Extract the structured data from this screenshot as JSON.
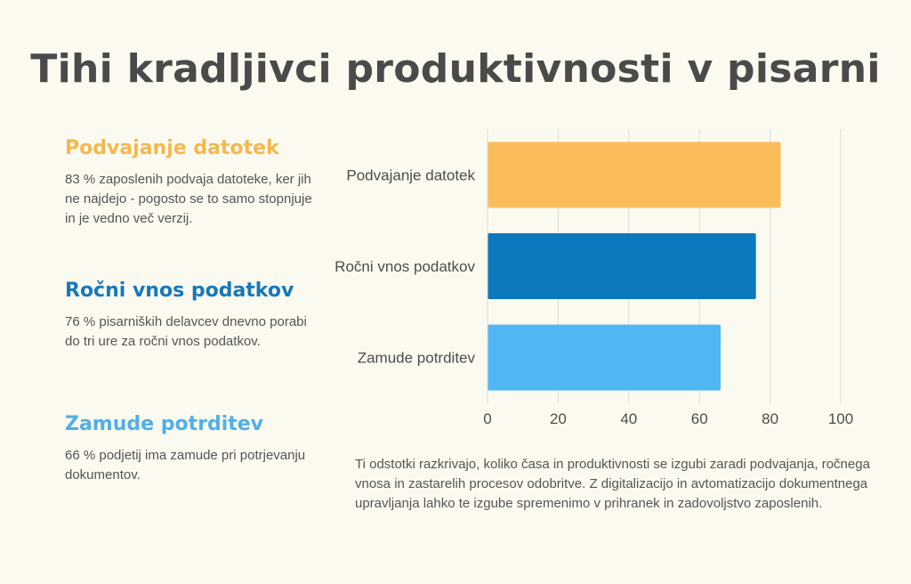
{
  "title": "Tihi kradljivci produktivnosti v pisarni",
  "stats": [
    {
      "heading": "Podvajanje datotek",
      "text": "83 % zaposlenih podvaja datoteke, ker jih ne najdejo - pogosto se to samo stopnjuje in je vedno več verzij."
    },
    {
      "heading": "Ročni vnos podatkov",
      "text": "76 % pisarniških delavcev dnevno porabi do tri ure za ročni vnos podatkov."
    },
    {
      "heading": "Zamude potrditev",
      "text": "66 % podjetij ima zamude pri potrjevanju dokumentov."
    }
  ],
  "footnote": "Ti odstotki razkrivajo, koliko časa in produktivnosti se izgubi zaradi podvajanja, ročnega vnosa in zastarelih procesov odobritve. Z digitalizacijo in avtomatizacijo dokumentnega upravljanja lahko te izgube spremenimo v prihranek in zadovoljstvo zaposlenih.",
  "colors": {
    "background": "#fbfaf1",
    "gridline": "#dcdcd4",
    "series": [
      "#fbbd5c",
      "#0c79bd",
      "#51b7f2"
    ]
  },
  "chart_data": {
    "type": "bar",
    "orientation": "horizontal",
    "categories": [
      "Podvajanje datotek",
      "Ročni vnos podatkov",
      "Zamude potrditev"
    ],
    "values": [
      83,
      76,
      66
    ],
    "xlim": [
      0,
      100
    ],
    "xticks": [
      0,
      20,
      40,
      60,
      80,
      100
    ],
    "grid": true,
    "legend": "none",
    "title": "",
    "xlabel": "",
    "ylabel": ""
  }
}
